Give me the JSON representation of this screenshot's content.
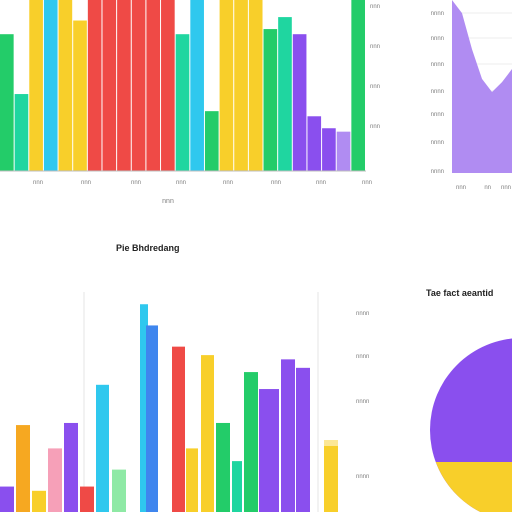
{
  "colors": {
    "green": "#23cc69",
    "teal": "#1fd6a0",
    "yellow": "#f8cf2a",
    "cyan": "#2fc8ee",
    "red": "#ef4a46",
    "purple": "#8a4fee",
    "lavender": "#b08cf2",
    "orange": "#f6a821",
    "pink": "#f6a0b8",
    "blue": "#3f86ee",
    "lightgreen": "#8fe9a5",
    "axis": "#bdbdbd",
    "label": "#7f7f7f",
    "grid": "#eeeeee"
  },
  "chart_data": [
    {
      "type": "bar",
      "title": "",
      "xlabel": "nnn",
      "ylabel": "",
      "x_ticks": [
        "nnn",
        "nnn",
        "nnn",
        "nnn",
        "nnn",
        "nnn",
        "nnn",
        "nnn"
      ],
      "y_ticks": [
        "nnn",
        "nnn",
        "nnn",
        "nnn"
      ],
      "ylim": [
        0,
        100
      ],
      "bars": [
        {
          "c": "green",
          "v": 80
        },
        {
          "c": "teal",
          "v": 45
        },
        {
          "c": "yellow",
          "v": 100
        },
        {
          "c": "cyan",
          "v": 100
        },
        {
          "c": "yellow",
          "v": 100
        },
        {
          "c": "yellow",
          "v": 88
        },
        {
          "c": "red",
          "v": 100
        },
        {
          "c": "red",
          "v": 100
        },
        {
          "c": "red",
          "v": 100
        },
        {
          "c": "red",
          "v": 100
        },
        {
          "c": "red",
          "v": 100
        },
        {
          "c": "red",
          "v": 100
        },
        {
          "c": "teal",
          "v": 80
        },
        {
          "c": "cyan",
          "v": 100
        },
        {
          "c": "green",
          "v": 35
        },
        {
          "c": "yellow",
          "v": 100
        },
        {
          "c": "yellow",
          "v": 100
        },
        {
          "c": "yellow",
          "v": 100
        },
        {
          "c": "green",
          "v": 83
        },
        {
          "c": "teal",
          "v": 90
        },
        {
          "c": "purple",
          "v": 80
        },
        {
          "c": "purple",
          "v": 32
        },
        {
          "c": "purple",
          "v": 25
        },
        {
          "c": "lavender",
          "v": 23
        },
        {
          "c": "green",
          "v": 100
        }
      ]
    },
    {
      "type": "area",
      "title": "",
      "x_ticks": [
        "nnn",
        "nn",
        "nnn"
      ],
      "y_ticks": [
        "nnnn",
        "nnnn",
        "nnnn",
        "nnnn",
        "nnnn",
        "nnnn",
        "nnnn"
      ],
      "series": [
        {
          "values": [
            100,
            92,
            70,
            52,
            44,
            50,
            58
          ]
        }
      ]
    },
    {
      "type": "bar",
      "title": "Pie Bhdredang",
      "ylabel": "",
      "xlabel": "",
      "ylim": [
        0,
        100
      ],
      "bars": [
        {
          "c": "purple",
          "v": 12
        },
        {
          "c": "orange",
          "v": 41
        },
        {
          "c": "yellow",
          "v": 10
        },
        {
          "c": "pink",
          "v": 30
        },
        {
          "c": "purple",
          "v": 42
        },
        {
          "c": "red",
          "v": 12
        },
        {
          "c": "cyan",
          "v": 60
        },
        {
          "c": "lightgreen",
          "v": 20
        },
        {
          "c": "cyan",
          "v": 98
        },
        {
          "c": "blue",
          "v": 88
        },
        {
          "c": "red",
          "v": 78
        },
        {
          "c": "yellow",
          "v": 30
        },
        {
          "c": "yellow",
          "v": 74
        },
        {
          "c": "green",
          "v": 42
        },
        {
          "c": "teal",
          "v": 24
        },
        {
          "c": "green",
          "v": 66
        },
        {
          "c": "purple",
          "v": 58
        },
        {
          "c": "purple",
          "v": 72
        },
        {
          "c": "purple",
          "v": 68
        }
      ]
    },
    {
      "type": "pie",
      "title": "Tae fact aeantid",
      "y_ticks": [
        "nnnn",
        "nnnn",
        "nnnn",
        "nnnn",
        "nnnn"
      ],
      "slices": [
        {
          "label": "",
          "value": 70,
          "color": "purple"
        },
        {
          "label": "",
          "value": 30,
          "color": "yellow"
        }
      ]
    }
  ]
}
